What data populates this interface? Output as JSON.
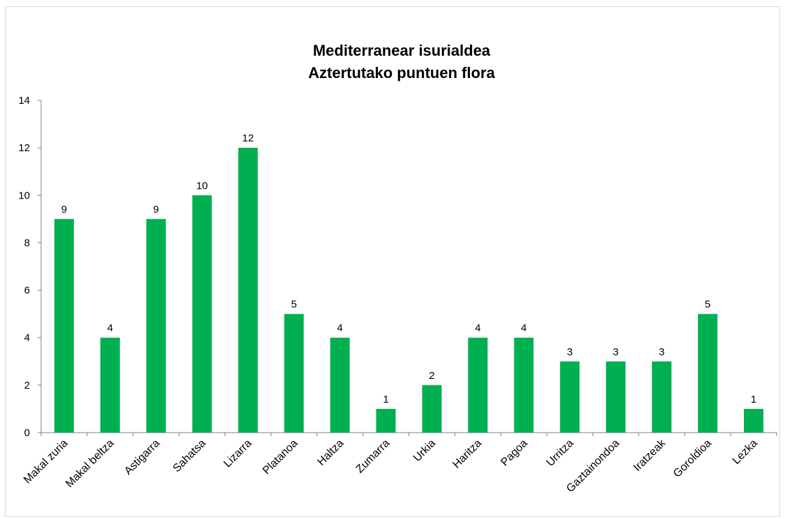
{
  "chart_data": {
    "type": "bar",
    "title": [
      "Mediterranear isurialdea",
      "Aztertutako puntuen flora"
    ],
    "xlabel": "",
    "ylabel": "",
    "categories": [
      "Makal zuria",
      "Makal beltza",
      "Astigarra",
      "Sahatsa",
      "Lizarra",
      "Platanoa",
      "Haltza",
      "Zumarra",
      "Urkia",
      "Haritza",
      "Pagoa",
      "Urritza",
      "Gaztainondoa",
      "Iratzeak",
      "Goroldioa",
      "Lezka"
    ],
    "values": [
      9,
      4,
      9,
      10,
      12,
      5,
      4,
      1,
      2,
      4,
      4,
      3,
      3,
      3,
      5,
      1
    ],
    "ylim": [
      0,
      14
    ],
    "yticks": [
      0,
      2,
      4,
      6,
      8,
      10,
      12,
      14
    ],
    "grid": false,
    "legend": "none",
    "data_labels": true,
    "bar_color": "#00b050",
    "axis_color": "#7f7f7f"
  }
}
